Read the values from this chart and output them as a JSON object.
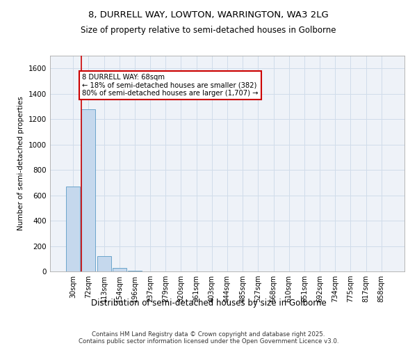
{
  "title_line1": "8, DURRELL WAY, LOWTON, WARRINGTON, WA3 2LG",
  "title_line2": "Size of property relative to semi-detached houses in Golborne",
  "xlabel": "Distribution of semi-detached houses by size in Golborne",
  "ylabel": "Number of semi-detached properties",
  "categories": [
    "30sqm",
    "72sqm",
    "113sqm",
    "154sqm",
    "196sqm",
    "237sqm",
    "279sqm",
    "320sqm",
    "361sqm",
    "403sqm",
    "444sqm",
    "485sqm",
    "527sqm",
    "568sqm",
    "610sqm",
    "651sqm",
    "692sqm",
    "734sqm",
    "775sqm",
    "817sqm",
    "858sqm"
  ],
  "values": [
    670,
    1280,
    120,
    30,
    8,
    0,
    0,
    0,
    0,
    0,
    0,
    0,
    0,
    0,
    0,
    0,
    0,
    0,
    0,
    0,
    0
  ],
  "bar_color": "#c5d8ed",
  "bar_edge_color": "#5a9bc5",
  "ylim": [
    0,
    1700
  ],
  "yticks": [
    0,
    200,
    400,
    600,
    800,
    1000,
    1200,
    1400,
    1600
  ],
  "annotation_line1": "8 DURRELL WAY: 68sqm",
  "annotation_line2": "← 18% of semi-detached houses are smaller (382)",
  "annotation_line3": "80% of semi-detached houses are larger (1,707) →",
  "vline_color": "#cc0000",
  "annotation_box_color": "#cc0000",
  "grid_color": "#d0dcea",
  "background_color": "#eef2f8",
  "footer_line1": "Contains HM Land Registry data © Crown copyright and database right 2025.",
  "footer_line2": "Contains public sector information licensed under the Open Government Licence v3.0."
}
